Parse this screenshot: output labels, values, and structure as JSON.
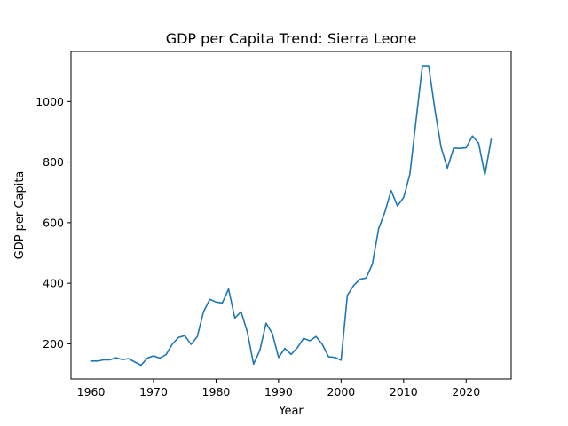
{
  "chart_data": {
    "type": "line",
    "title": "GDP per Capita Trend: Sierra Leone",
    "xlabel": "Year",
    "ylabel": "GDP per Capita",
    "xlim": [
      1956.8,
      2027.2
    ],
    "ylim": [
      84,
      1165
    ],
    "xticks": [
      1960,
      1970,
      1980,
      1990,
      2000,
      2010,
      2020
    ],
    "yticks": [
      200,
      400,
      600,
      800,
      1000
    ],
    "grid": false,
    "line_color": "#1f77b4",
    "series": [
      {
        "x": [
          1960,
          1961,
          1962,
          1963,
          1964,
          1965,
          1966,
          1967,
          1968,
          1969,
          1970,
          1971,
          1972,
          1973,
          1974,
          1975,
          1976,
          1977,
          1978,
          1979,
          1980,
          1981,
          1982,
          1983,
          1984,
          1985,
          1986,
          1987,
          1988,
          1989,
          1990,
          1991,
          1992,
          1993,
          1994,
          1995,
          1996,
          1997,
          1998,
          1999,
          2000,
          2001,
          2002,
          2003,
          2004,
          2005,
          2006,
          2007,
          2008,
          2009,
          2010,
          2011,
          2012,
          2013,
          2014,
          2015,
          2016,
          2017,
          2018,
          2019,
          2020,
          2021,
          2022,
          2023,
          2024
        ],
        "values": [
          143,
          143,
          147,
          147,
          154,
          148,
          151,
          140,
          129,
          153,
          160,
          153,
          164,
          199,
          221,
          227,
          198,
          224,
          306,
          347,
          338,
          335,
          381,
          285,
          306,
          239,
          133,
          178,
          268,
          234,
          155,
          185,
          165,
          187,
          218,
          210,
          224,
          198,
          157,
          155,
          146,
          360,
          392,
          413,
          417,
          463,
          580,
          635,
          706,
          655,
          683,
          760,
          940,
          1118,
          1118,
          973,
          848,
          780,
          846,
          845,
          847,
          886,
          862,
          758,
          875
        ]
      }
    ]
  }
}
